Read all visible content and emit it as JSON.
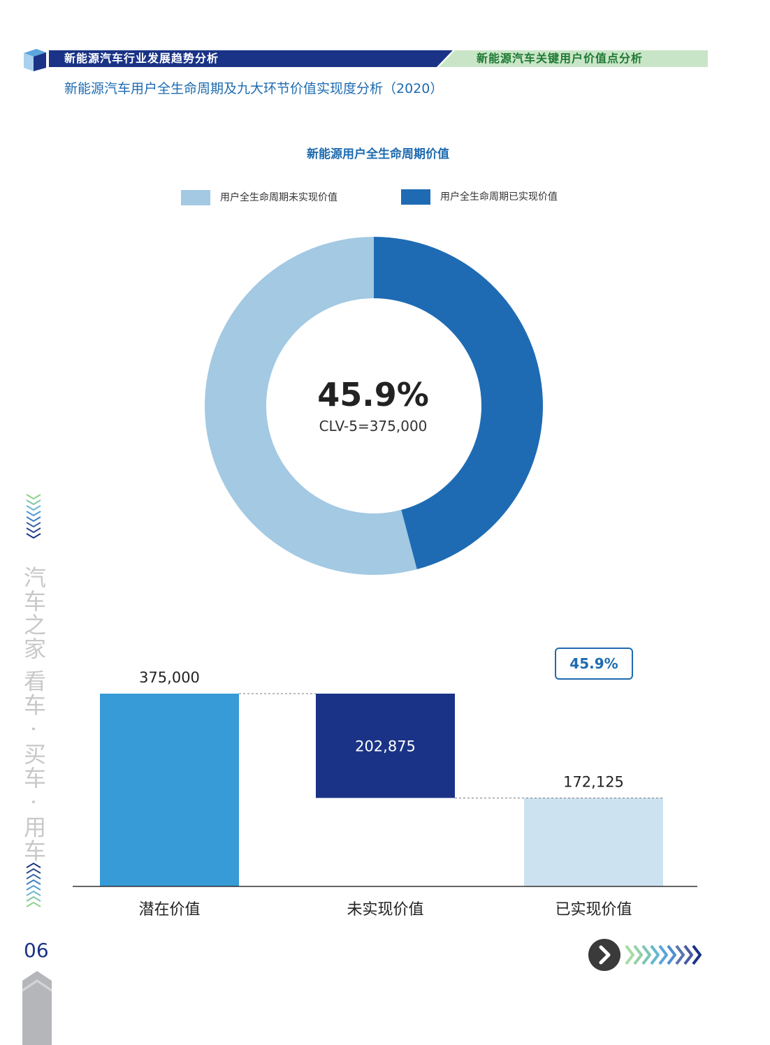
{
  "header": {
    "left_title": "新能源汽车行业发展趋势分析",
    "right_title": "新能源汽车关键用户价值点分析"
  },
  "page_title": "新能源汽车用户全生命周期及九大环节价值实现度分析（2020）",
  "sidebar": {
    "vertical_text": "汽车之家 看车 · 买车 · 用车",
    "page_number": "06"
  },
  "colors": {
    "unrealized": "#a3c9e3",
    "realized": "#1e6bb4",
    "potential_bar": "#369bd6",
    "unrealized_bar": "#1a3386",
    "realized_bar": "#cde2f0",
    "title_blue": "#1e6bb0"
  },
  "icons": [
    "cube-icon",
    "chevron-right-icon",
    "arrows-icon"
  ],
  "chart_data": [
    {
      "type": "pie",
      "title": "新能源用户全生命周期价值",
      "legend": [
        "用户全生命周期未实现价值",
        "用户全生命周期已实现价值"
      ],
      "legend_position": "top",
      "slices": [
        {
          "name": "用户全生命周期已实现价值",
          "value": 45.9
        },
        {
          "name": "用户全生命周期未实现价值",
          "value": 54.1
        }
      ],
      "center_value": "45.9%",
      "center_label": "CLV-5=375,000"
    },
    {
      "type": "bar",
      "subtype": "waterfall",
      "categories": [
        "潜在价值",
        "未实现价值",
        "已实现价值"
      ],
      "values": [
        375000,
        202875,
        172125
      ],
      "labels": [
        "375,000",
        "202,875",
        "172,125"
      ],
      "annotation": "45.9%",
      "ylim": [
        0,
        375000
      ]
    }
  ]
}
